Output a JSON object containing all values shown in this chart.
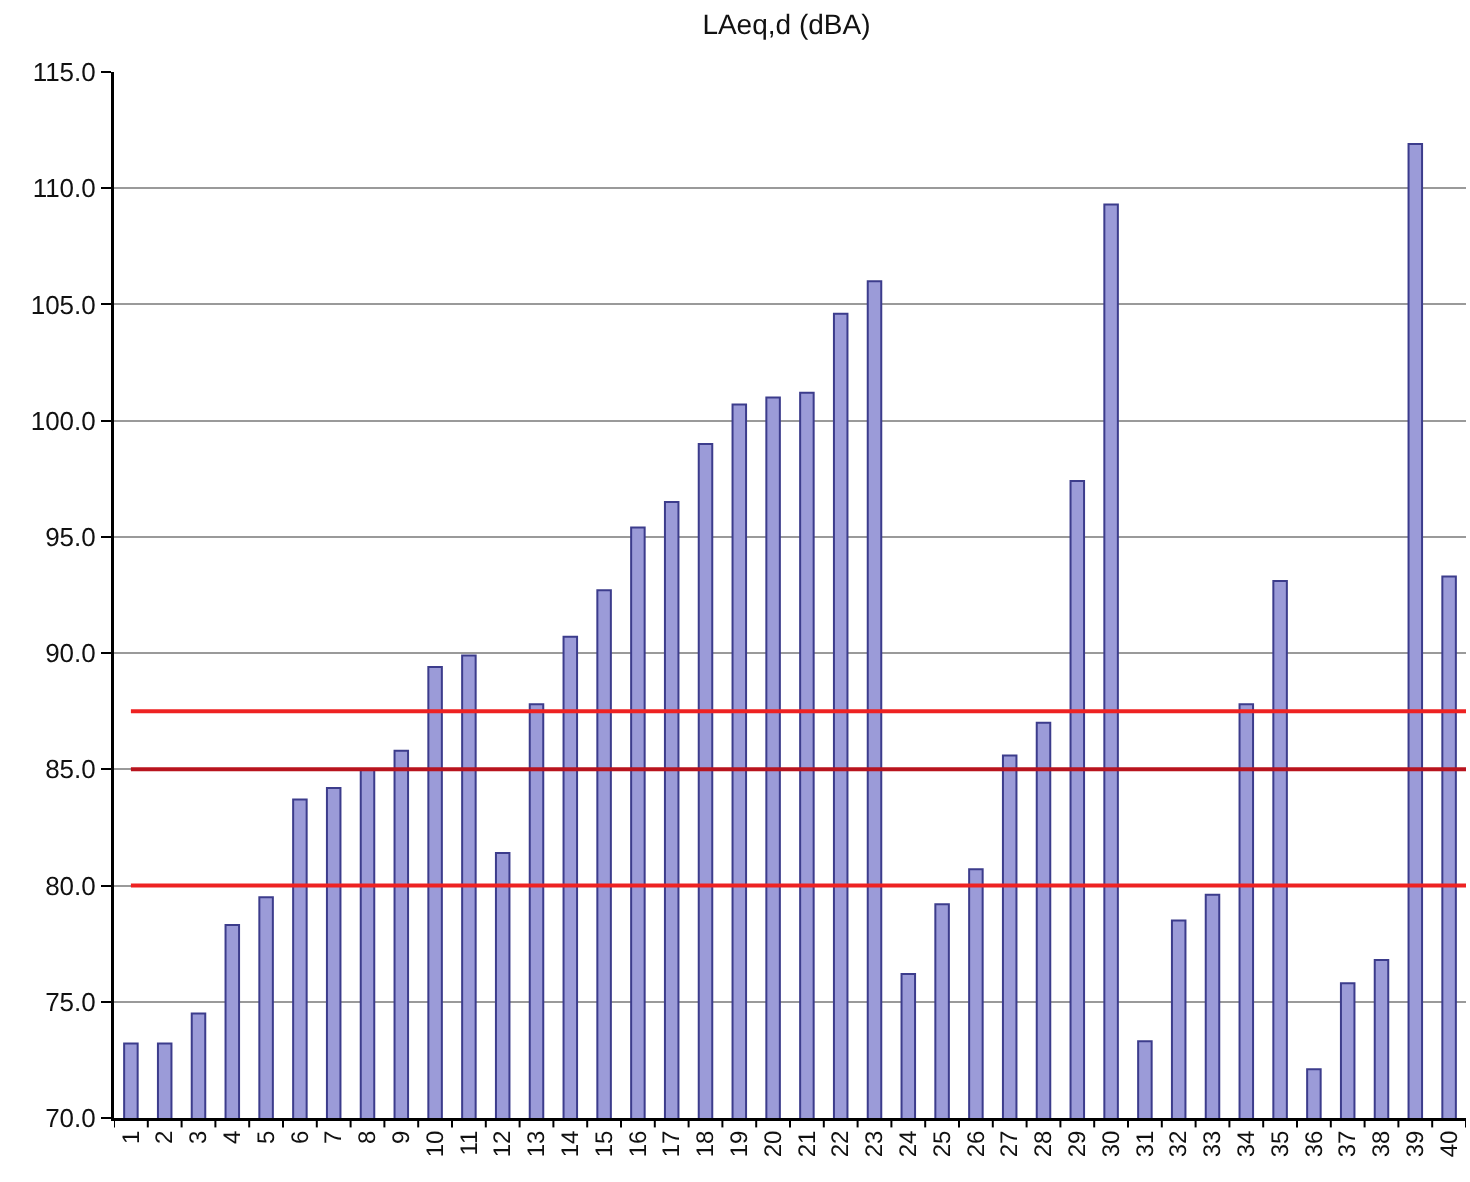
{
  "chart_data": {
    "type": "bar",
    "title": "LAeq,d (dBA)",
    "categories": [
      "1",
      "2",
      "3",
      "4",
      "5",
      "6",
      "7",
      "8",
      "9",
      "10",
      "11",
      "12",
      "13",
      "14",
      "15",
      "16",
      "17",
      "18",
      "19",
      "20",
      "21",
      "22",
      "23",
      "24",
      "25",
      "26",
      "27",
      "28",
      "29",
      "30",
      "31",
      "32",
      "33",
      "34",
      "35",
      "36",
      "37",
      "38",
      "39",
      "40"
    ],
    "values": [
      73.2,
      73.2,
      74.5,
      78.3,
      79.5,
      83.7,
      84.2,
      85.0,
      85.8,
      89.4,
      89.9,
      81.4,
      87.8,
      90.7,
      92.7,
      95.4,
      96.5,
      99.0,
      100.7,
      101.0,
      101.2,
      104.6,
      106.0,
      76.2,
      79.2,
      80.7,
      85.6,
      87.0,
      97.4,
      109.3,
      73.3,
      78.5,
      79.6,
      87.8,
      93.1,
      72.1,
      75.8,
      76.8,
      111.9,
      93.3
    ],
    "color": "#9b9bd8",
    "ylim": [
      70,
      115
    ],
    "yticks": [
      {
        "value": 70,
        "label": "70.0"
      },
      {
        "value": 75,
        "label": "75.0"
      },
      {
        "value": 80,
        "label": "80.0"
      },
      {
        "value": 85,
        "label": "85.0"
      },
      {
        "value": 90,
        "label": "90.0"
      },
      {
        "value": 95,
        "label": "95.0"
      },
      {
        "value": 100,
        "label": "100.0"
      },
      {
        "value": 105,
        "label": "105.0"
      },
      {
        "value": 110,
        "label": "110.0"
      },
      {
        "value": 115,
        "label": "115.0"
      }
    ],
    "ref_lines": [
      {
        "axis": "y",
        "value": 80,
        "color": "#ee2222"
      },
      {
        "axis": "y",
        "value": 85,
        "color": "#b8141e"
      },
      {
        "axis": "y",
        "value": 87.5,
        "color": "#ee2222"
      }
    ],
    "grid": "y"
  }
}
